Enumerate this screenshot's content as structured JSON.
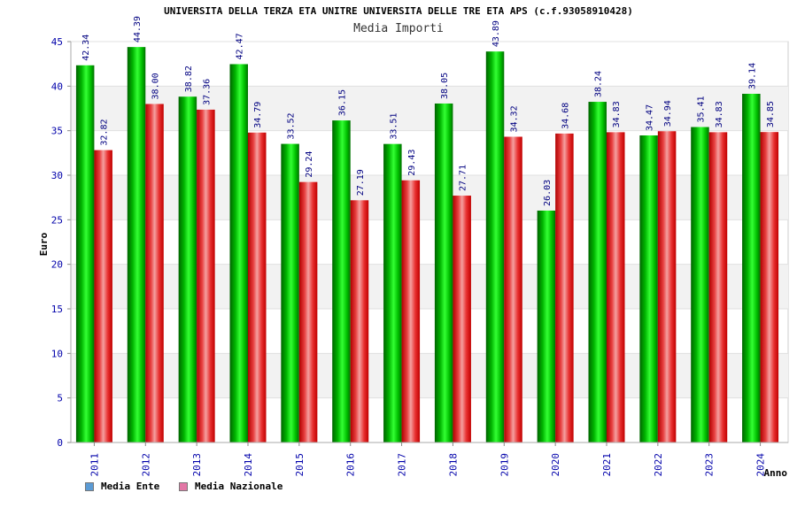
{
  "chart_data": {
    "type": "bar",
    "title": "UNIVERSITA DELLA TERZA ETA UNITRE UNIVERSITA DELLE TRE ETA APS (c.f.93058910428)",
    "subtitle": "Media Importi",
    "xlabel": "Anno",
    "ylabel": "Euro",
    "ylim": [
      0,
      45
    ],
    "yticks": [
      "0",
      "5",
      "10",
      "15",
      "20",
      "25",
      "30",
      "35",
      "40",
      "45"
    ],
    "categories": [
      "2011",
      "2012",
      "2013",
      "2014",
      "2015",
      "2016",
      "2017",
      "2018",
      "2019",
      "2020",
      "2021",
      "2022",
      "2023",
      "2024"
    ],
    "series": [
      {
        "name": "Media Ente",
        "color": "#00c800",
        "values": [
          42.34,
          44.39,
          38.82,
          42.47,
          33.52,
          36.15,
          33.51,
          38.05,
          43.89,
          26.03,
          38.24,
          34.47,
          35.41,
          39.14
        ],
        "labels": [
          "42.34",
          "44.39",
          "38.82",
          "42.47",
          "33.52",
          "36.15",
          "33.51",
          "38.05",
          "43.89",
          "26.03",
          "38.24",
          "34.47",
          "35.41",
          "39.14"
        ]
      },
      {
        "name": "Media Nazionale",
        "color": "#e00000",
        "values": [
          32.82,
          38.0,
          37.36,
          34.79,
          29.24,
          27.19,
          29.43,
          27.71,
          34.32,
          34.68,
          34.83,
          34.94,
          34.83,
          34.85
        ],
        "labels": [
          "32.82",
          "38.00",
          "37.36",
          "34.79",
          "29.24",
          "27.19",
          "29.43",
          "27.71",
          "34.32",
          "34.68",
          "34.83",
          "34.94",
          "34.83",
          "34.85"
        ]
      }
    ],
    "legend": [
      {
        "label": "Media Ente",
        "color": "#5b9bd5"
      },
      {
        "label": "Media Nazionale",
        "color": "#e377a6"
      }
    ],
    "legend_position": "bottom-left",
    "grid": true
  }
}
